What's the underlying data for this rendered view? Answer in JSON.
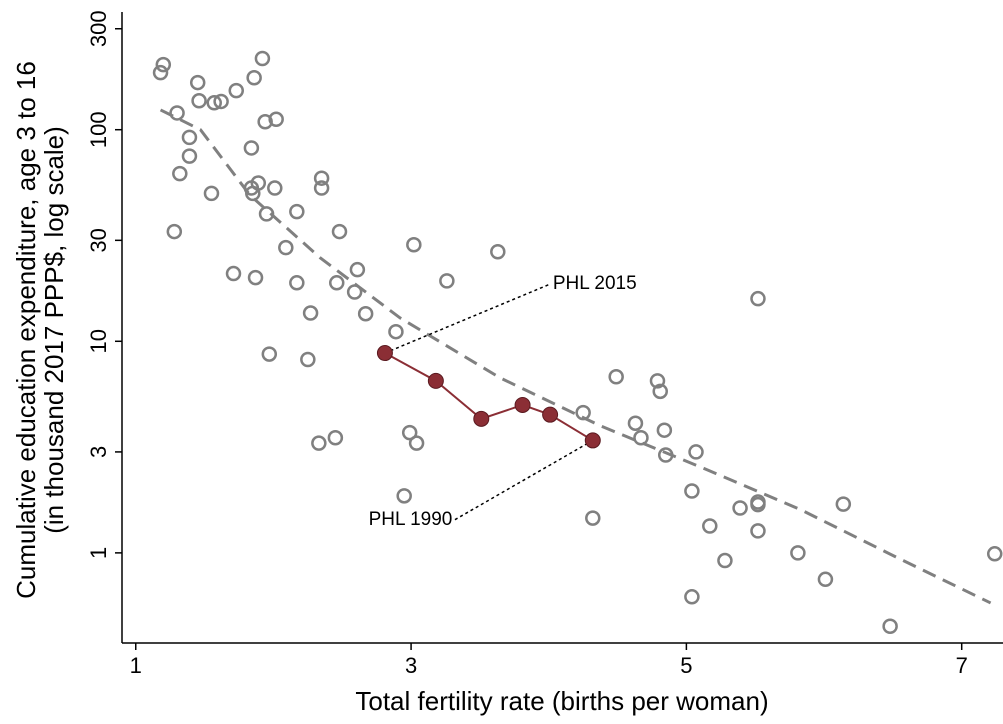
{
  "chart_data": {
    "type": "scatter",
    "xlabel": "Total fertility rate (births per woman)",
    "ylabel": [
      "Cumulative education expenditure, age 3 to 16",
      "(in thousand 2017 PPP$, log scale)"
    ],
    "xlim": [
      0.9,
      7.3
    ],
    "ylim": [
      0.375,
      360
    ],
    "ylog": true,
    "xticks": [
      1,
      3,
      5,
      7
    ],
    "yticks": [
      1,
      3,
      10,
      30,
      100,
      300
    ],
    "scatter": {
      "color": "#808080",
      "x": [
        1.18,
        1.2,
        1.92,
        1.45,
        1.73,
        1.86,
        1.46,
        1.57,
        1.62,
        1.3,
        1.94,
        2.02,
        1.39,
        1.84,
        1.39,
        1.32,
        2.35,
        1.84,
        1.89,
        1.85,
        2.01,
        2.35,
        1.55,
        1.95,
        2.17,
        1.28,
        2.48,
        3.02,
        3.63,
        2.09,
        1.71,
        2.61,
        1.87,
        2.17,
        2.46,
        3.26,
        2.59,
        5.52,
        2.27,
        2.67,
        2.89,
        1.97,
        2.25,
        4.49,
        4.79,
        4.81,
        4.25,
        4.63,
        4.84,
        4.67,
        2.99,
        2.45,
        2.33,
        3.04,
        4.85,
        5.07,
        2.95,
        5.04,
        4.32,
        5.39,
        5.52,
        5.52,
        6.14,
        5.17,
        5.52,
        5.81,
        5.28,
        7.24,
        6.01,
        5.04,
        6.48
      ],
      "y": [
        186,
        203,
        217,
        167,
        153,
        176,
        137,
        134,
        136,
        120,
        109,
        112,
        92,
        82,
        75,
        62,
        59,
        53,
        56,
        50,
        53,
        53,
        50,
        40,
        41,
        33,
        33,
        28.6,
        26.5,
        27.7,
        20.9,
        21.8,
        20,
        18.9,
        18.9,
        19.3,
        17.1,
        15.9,
        13.6,
        13.5,
        11.1,
        8.7,
        8.2,
        6.8,
        6.5,
        5.8,
        4.6,
        4.1,
        3.8,
        3.5,
        3.7,
        3.5,
        3.3,
        3.3,
        2.9,
        3,
        1.86,
        1.96,
        1.46,
        1.63,
        1.74,
        1.69,
        1.7,
        1.34,
        1.27,
        1,
        0.92,
        0.99,
        0.75,
        0.62,
        0.45
      ]
    },
    "fit": {
      "color": "#808080",
      "x": [
        1.18,
        1.47,
        1.83,
        2.34,
        2.92,
        3.65,
        4.37,
        5.1,
        5.83,
        6.56,
        7.21
      ],
      "y": [
        124,
        100,
        49,
        24.8,
        12.9,
        6.7,
        4,
        2.55,
        1.6,
        0.93,
        0.58
      ]
    },
    "phl": {
      "color": "#8b2e35",
      "x": [
        2.81,
        3.18,
        3.51,
        3.81,
        4.01,
        4.32
      ],
      "y": [
        8.8,
        6.5,
        4.3,
        5,
        4.5,
        3.4
      ]
    },
    "annotations": [
      {
        "text": "PHL 2015",
        "x": 4.03,
        "y": 18.7
      },
      {
        "text": "PHL 1990",
        "x": 3.3,
        "y": 1.43
      }
    ]
  }
}
